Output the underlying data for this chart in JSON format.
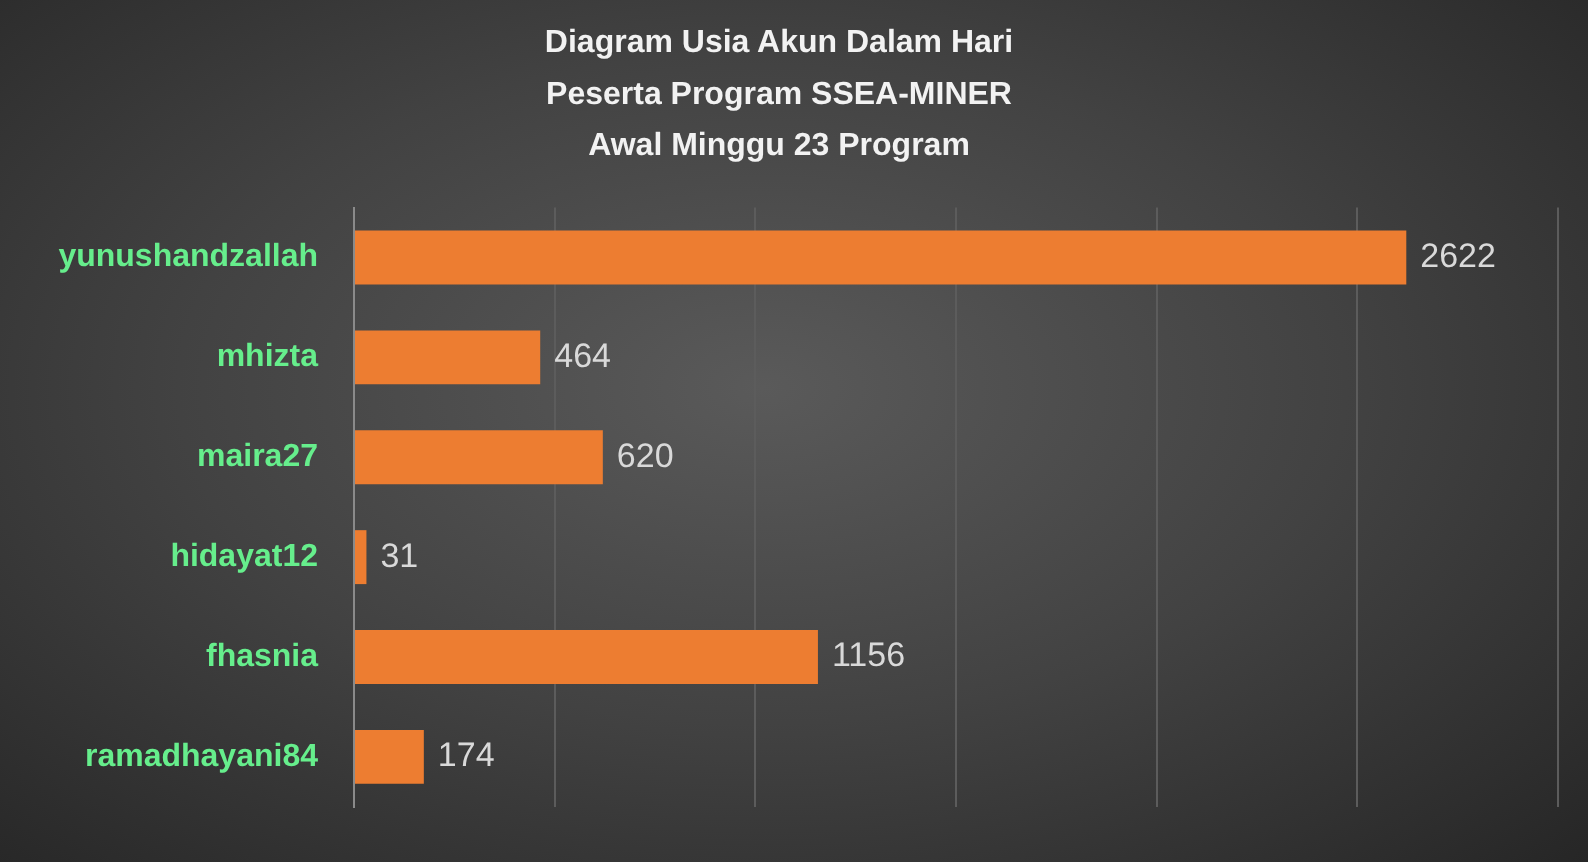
{
  "chart_data": {
    "type": "bar",
    "orientation": "horizontal",
    "title": "Diagram Usia Akun Dalam Hari\nPeserta Program SSEA-MINER\nAwal Minggu 23 Program",
    "categories": [
      "yunushandzallah",
      "mhizta",
      "maira27",
      "hidayat12",
      "fhasnia",
      "ramadhayani84"
    ],
    "values": [
      2622,
      464,
      620,
      31,
      1156,
      174
    ],
    "color": "#ed7d31",
    "xlim": [
      0,
      3000
    ],
    "xticks": [
      {
        "value": 0,
        "label": null
      },
      {
        "value": 500,
        "label": null
      },
      {
        "value": 1000,
        "label": null
      },
      {
        "value": 1500,
        "label": null
      },
      {
        "value": 2000,
        "label": null
      },
      {
        "value": 2500,
        "label": null
      },
      {
        "value": 3000,
        "label": null
      }
    ],
    "grid": "x",
    "data_labels": true,
    "tick_labels": "y"
  }
}
